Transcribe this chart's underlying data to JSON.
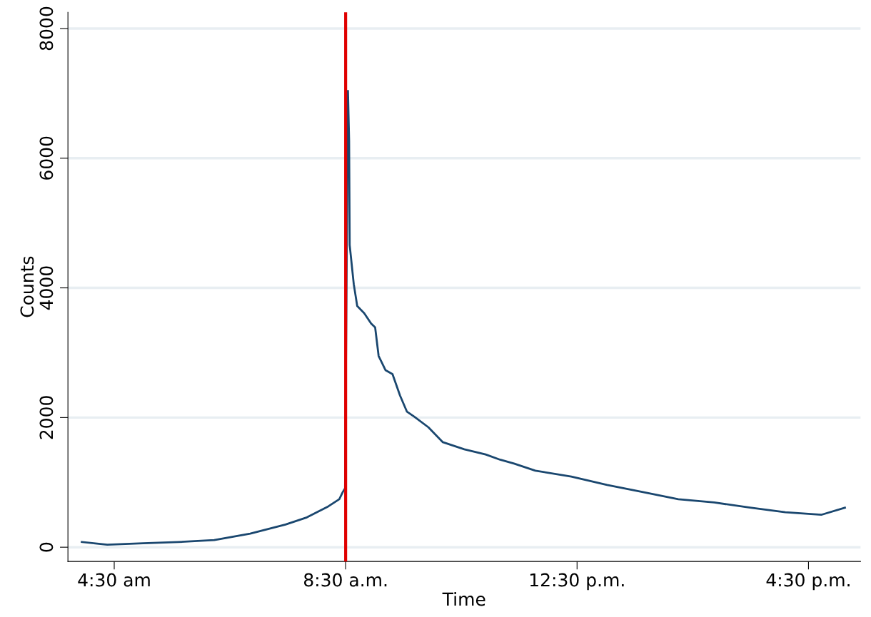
{
  "chart_data": {
    "type": "line",
    "xlabel": "Time",
    "ylabel": "Counts",
    "x": [
      3.94,
      4.38,
      5.0,
      5.61,
      6.23,
      6.85,
      7.46,
      7.83,
      8.2,
      8.39,
      8.45,
      8.49,
      8.54,
      8.56,
      8.57,
      8.64,
      8.7,
      8.82,
      8.94,
      9.01,
      9.07,
      9.19,
      9.31,
      9.44,
      9.56,
      9.69,
      9.93,
      10.18,
      10.55,
      10.92,
      11.17,
      11.41,
      11.78,
      12.4,
      13.02,
      13.64,
      14.25,
      14.87,
      15.49,
      16.1,
      16.72,
      17.13
    ],
    "series": [
      {
        "color": "#1a476f",
        "values": [
          80,
          40,
          60,
          80,
          110,
          210,
          350,
          460,
          630,
          740,
          850,
          910,
          7040,
          6270,
          4660,
          4060,
          3720,
          3610,
          3450,
          3390,
          2950,
          2730,
          2670,
          2340,
          2090,
          2010,
          1850,
          1620,
          1510,
          1430,
          1350,
          1290,
          1180,
          1090,
          960,
          850,
          740,
          690,
          610,
          540,
          500,
          610
        ]
      }
    ],
    "xlim": [
      3.7,
      17.4
    ],
    "xticks": [
      {
        "value": 4.5,
        "label": "4:30 am"
      },
      {
        "value": 8.5,
        "label": "8:30 a.m."
      },
      {
        "value": 12.5,
        "label": "12:30 p.m."
      },
      {
        "value": 16.5,
        "label": "4:30 p.m."
      }
    ],
    "ylim": [
      -220,
      8250
    ],
    "yticks": [
      0,
      2000,
      4000,
      6000,
      8000
    ],
    "grid": "y",
    "ref_lines": [
      {
        "axis": "x",
        "value": 8.5,
        "color": "#e00000"
      }
    ]
  }
}
